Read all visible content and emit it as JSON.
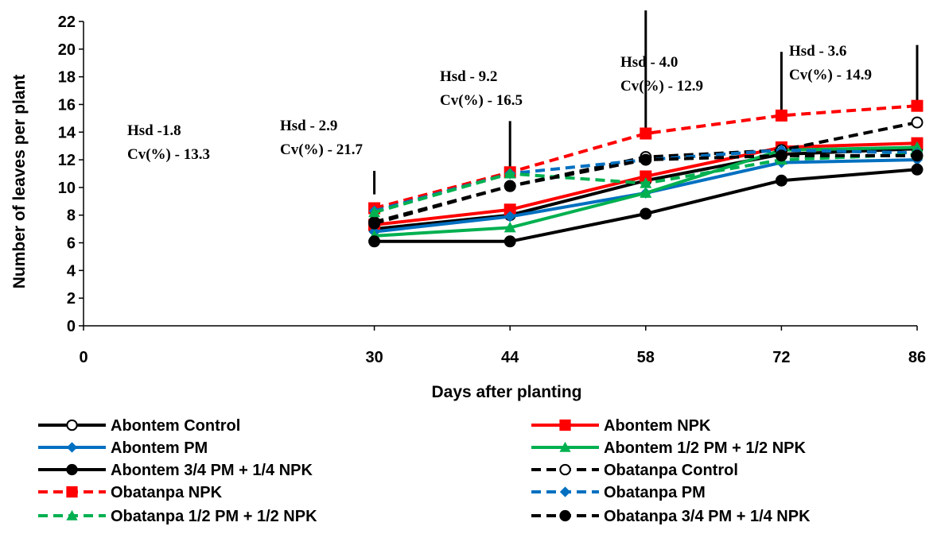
{
  "chart_data": {
    "type": "line",
    "title": "",
    "xlabel": "Days after planting",
    "ylabel": "Number of leaves per plant",
    "x_ticks": [
      0,
      30,
      44,
      58,
      72,
      86
    ],
    "y_ticks": [
      0,
      2,
      4,
      6,
      8,
      10,
      12,
      14,
      16,
      18,
      20,
      22
    ],
    "xlim": [
      0,
      86
    ],
    "ylim": [
      0,
      22
    ],
    "grid": false,
    "legend_position": "bottom",
    "x": [
      30,
      44,
      58,
      72,
      86
    ],
    "series": [
      {
        "name": "Abontem Control",
        "values": [
          7.0,
          8.0,
          10.5,
          12.4,
          12.8
        ],
        "color": "#000000",
        "dash": false,
        "marker": "circle-open"
      },
      {
        "name": "Abontem NPK",
        "values": [
          7.3,
          8.4,
          10.8,
          12.9,
          13.2
        ],
        "color": "#ff0000",
        "dash": false,
        "marker": "square"
      },
      {
        "name": "Abontem PM",
        "values": [
          6.8,
          7.9,
          9.6,
          11.8,
          12.0
        ],
        "color": "#0070c0",
        "dash": false,
        "marker": "diamond"
      },
      {
        "name": "Abontem 1/2 PM + 1/2 NPK",
        "values": [
          6.5,
          7.1,
          9.6,
          12.7,
          12.9
        ],
        "color": "#00b050",
        "dash": false,
        "marker": "triangle"
      },
      {
        "name": "Abontem 3/4 PM + 1/4 NPK",
        "values": [
          6.1,
          6.1,
          8.1,
          10.5,
          11.3
        ],
        "color": "#000000",
        "dash": false,
        "marker": "circle"
      },
      {
        "name": "Obatanpa Control",
        "values": [
          7.5,
          10.1,
          12.2,
          12.7,
          14.7
        ],
        "color": "#000000",
        "dash": true,
        "marker": "circle-open"
      },
      {
        "name": "Obatanpa NPK",
        "values": [
          8.5,
          11.1,
          13.9,
          15.2,
          15.9
        ],
        "color": "#ff0000",
        "dash": true,
        "marker": "square"
      },
      {
        "name": "Obatanpa PM",
        "values": [
          8.3,
          11.0,
          12.0,
          12.7,
          12.5
        ],
        "color": "#0070c0",
        "dash": true,
        "marker": "diamond"
      },
      {
        "name": "Obatanpa 1/2 PM + 1/2 NPK",
        "values": [
          8.2,
          11.0,
          10.3,
          12.0,
          12.4
        ],
        "color": "#00b050",
        "dash": true,
        "marker": "triangle"
      },
      {
        "name": "Obatanpa 3/4 PM + 1/4 NPK",
        "values": [
          7.4,
          10.1,
          12.0,
          12.3,
          12.3
        ],
        "color": "#000000",
        "dash": true,
        "marker": "circle"
      }
    ],
    "error_bars": [
      {
        "x": 30,
        "from": 9.5,
        "to": 11.2
      },
      {
        "x": 44,
        "from": 11.2,
        "to": 14.8
      },
      {
        "x": 58,
        "from": 14.0,
        "to": 22.8
      },
      {
        "x": 72,
        "from": 15.5,
        "to": 19.8
      },
      {
        "x": 86,
        "from": 16.0,
        "to": 20.3
      }
    ],
    "annotations": [
      {
        "x": 30,
        "lines": [
          "Hsd -1.8",
          "Cv(%) - 13.3"
        ]
      },
      {
        "x": 44,
        "lines": [
          "Hsd - 2.9",
          "Cv(%) - 21.7"
        ]
      },
      {
        "x": 58,
        "lines": [
          "Hsd - 9.2",
          "Cv(%) - 16.5"
        ]
      },
      {
        "x": 72,
        "lines": [
          "Hsd - 4.0",
          "Cv(%) - 12.9"
        ]
      },
      {
        "x": 86,
        "lines": [
          "Hsd - 3.6",
          "Cv(%) - 14.9"
        ]
      }
    ]
  }
}
